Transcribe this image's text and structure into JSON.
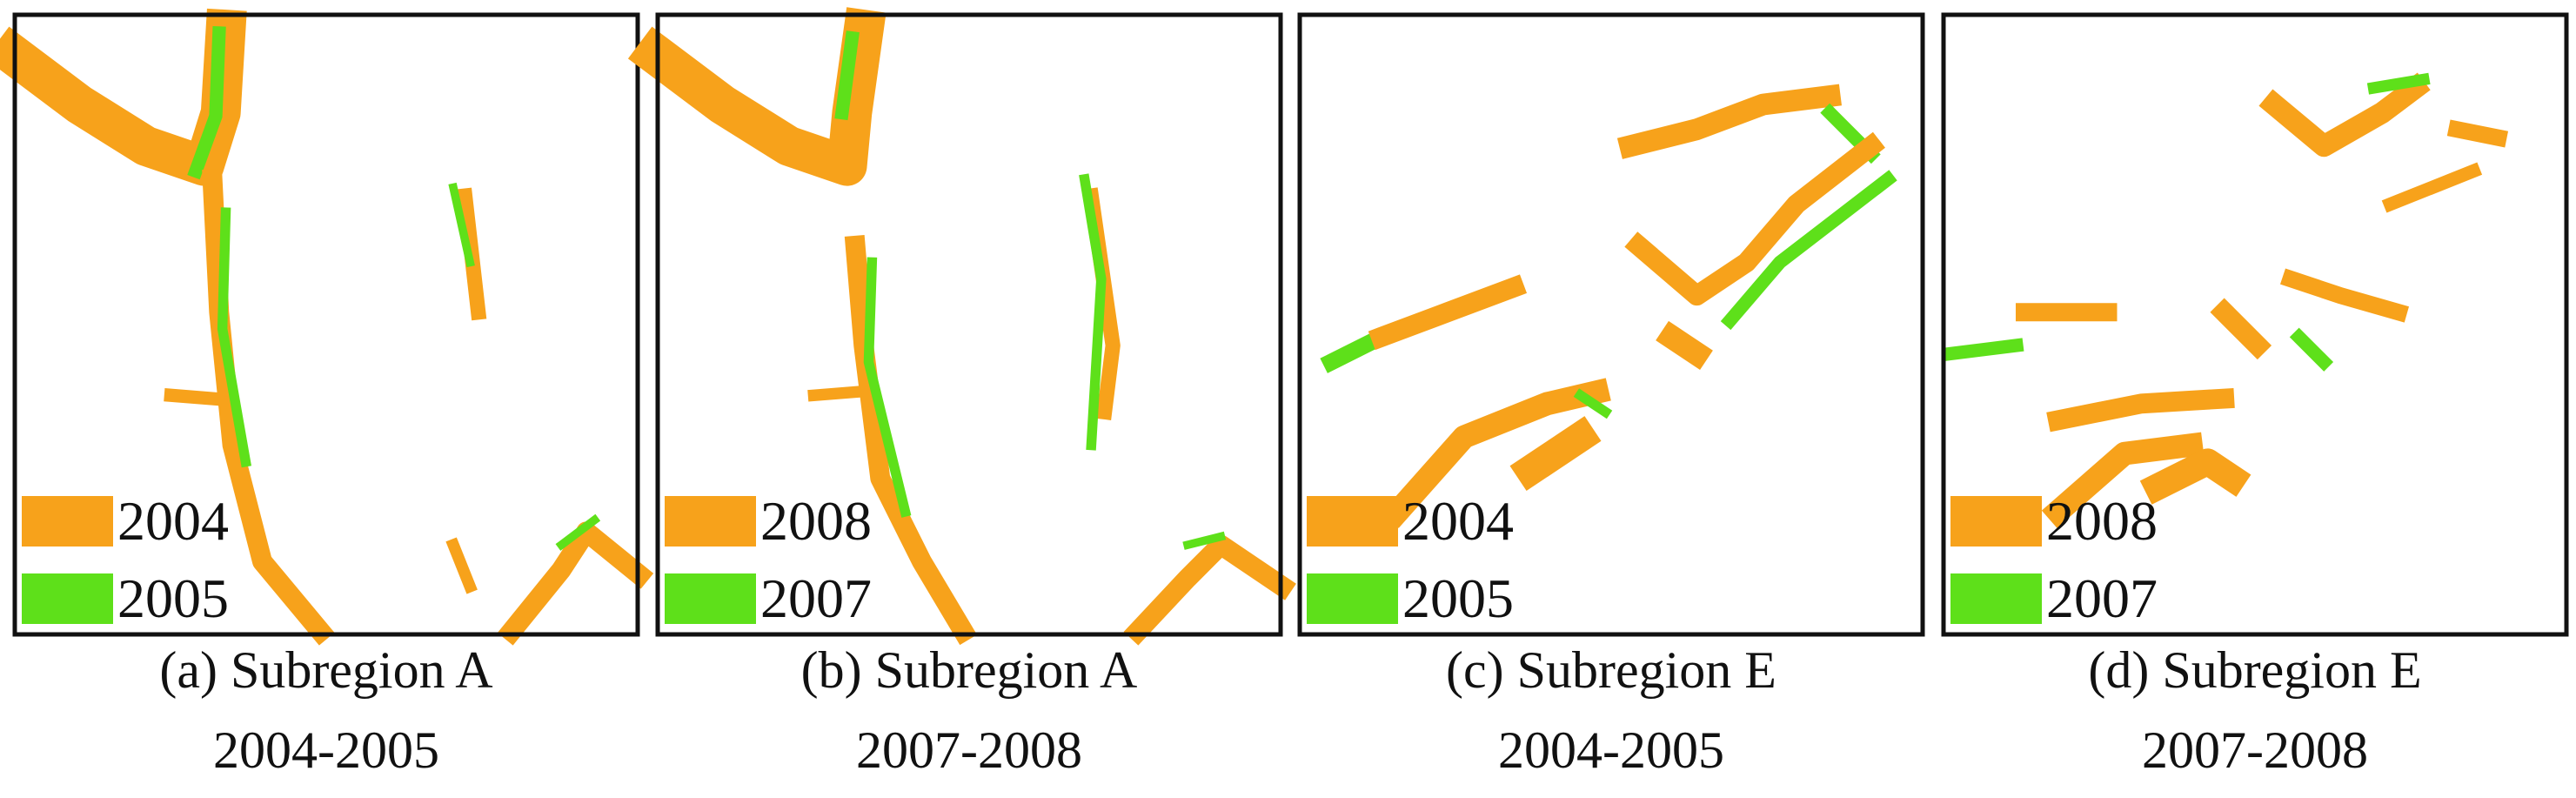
{
  "panels": [
    {
      "legend": [
        "2004",
        "2005"
      ],
      "caption": [
        "(a) Subregion A",
        "2004-2005"
      ]
    },
    {
      "legend": [
        "2008",
        "2007"
      ],
      "caption": [
        "(b) Subregion A",
        "2007-2008"
      ]
    },
    {
      "legend": [
        "2004",
        "2005"
      ],
      "caption": [
        "(c) Subregion E",
        "2004-2005"
      ]
    },
    {
      "legend": [
        "2008",
        "2007"
      ],
      "caption": [
        "(d) Subregion E",
        "2007-2008"
      ]
    }
  ]
}
